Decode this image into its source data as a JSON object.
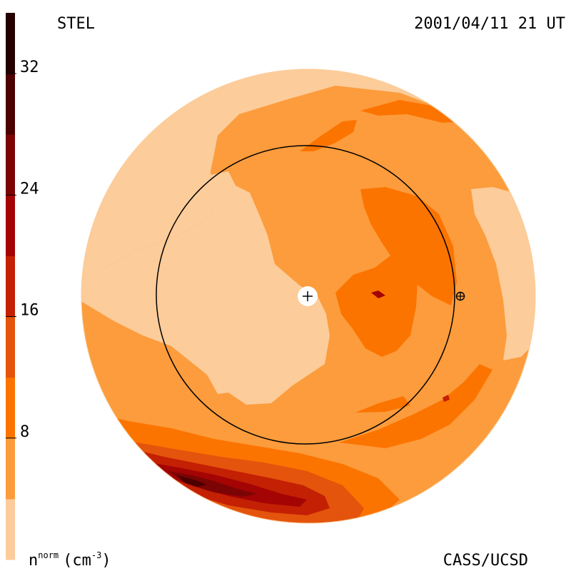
{
  "header": {
    "instrument": "STEL",
    "datetime": "2001/04/11 21 UT"
  },
  "footer": {
    "credit": "CASS/UCSD"
  },
  "colorbar": {
    "quantity_base": "n",
    "quantity_sup": "norm",
    "unit_open": "(cm",
    "unit_sup": "-3",
    "unit_close": ")",
    "ticks": [
      {
        "value": 8,
        "label": "8"
      },
      {
        "value": 16,
        "label": "16"
      },
      {
        "value": 24,
        "label": "24"
      },
      {
        "value": 32,
        "label": "32"
      }
    ],
    "range": [
      0,
      36
    ],
    "levels": [
      {
        "from": 0,
        "to": 4,
        "color": "#fccc9a"
      },
      {
        "from": 4,
        "to": 8,
        "color": "#fc9c3c"
      },
      {
        "from": 8,
        "to": 12,
        "color": "#fc7400"
      },
      {
        "from": 12,
        "to": 16,
        "color": "#e4540c"
      },
      {
        "from": 16,
        "to": 20,
        "color": "#c42004"
      },
      {
        "from": 20,
        "to": 24,
        "color": "#a40404"
      },
      {
        "from": 24,
        "to": 28,
        "color": "#7c0404"
      },
      {
        "from": 28,
        "to": 32,
        "color": "#4c0000"
      },
      {
        "from": 32,
        "to": 36,
        "color": "#240000"
      }
    ]
  },
  "map": {
    "markers": [
      {
        "name": "sun",
        "symbol": "+"
      },
      {
        "name": "earth",
        "symbol": "⊕"
      }
    ]
  }
}
